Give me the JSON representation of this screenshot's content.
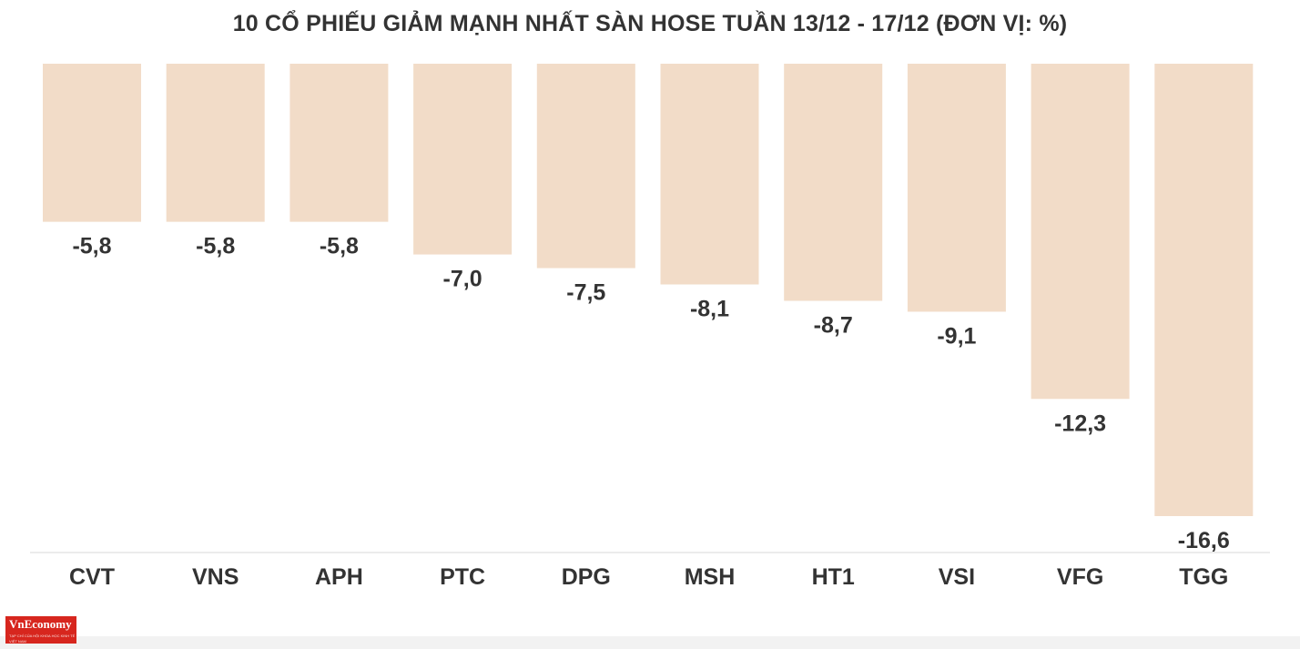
{
  "title": "10 CỔ PHIẾU GIẢM MẠNH NHẤT SÀN HOSE TUẦN 13/12 - 17/12 (ĐƠN VỊ: %)",
  "logo": {
    "name": "VnEconomy",
    "tagline": "TẠP CHÍ CỦA HỘI KHOA HỌC KINH TẾ VIỆT NAM"
  },
  "colors": {
    "bar": "#f2dcc8",
    "text": "#333333",
    "axis": "#e5e5e5",
    "logo": "#d7261e"
  },
  "chart_data": {
    "type": "bar",
    "categories": [
      "CVT",
      "VNS",
      "APH",
      "PTC",
      "DPG",
      "MSH",
      "HT1",
      "VSI",
      "VFG",
      "TGG"
    ],
    "values": [
      -5.8,
      -5.8,
      -5.8,
      -7.0,
      -7.5,
      -8.1,
      -8.7,
      -9.1,
      -12.3,
      -16.6
    ],
    "value_labels": [
      "-5,8",
      "-5,8",
      "-5,8",
      "-7,0",
      "-7,5",
      "-8,1",
      "-8,7",
      "-9,1",
      "-12,3",
      "-16,6"
    ],
    "title": "10 CỔ PHIẾU GIẢM MẠNH NHẤT SÀN HOSE TUẦN 13/12 - 17/12 (ĐƠN VỊ: %)",
    "xlabel": "",
    "ylabel": "",
    "ylim": [
      -16.6,
      0
    ],
    "grid": false,
    "legend": "none"
  }
}
